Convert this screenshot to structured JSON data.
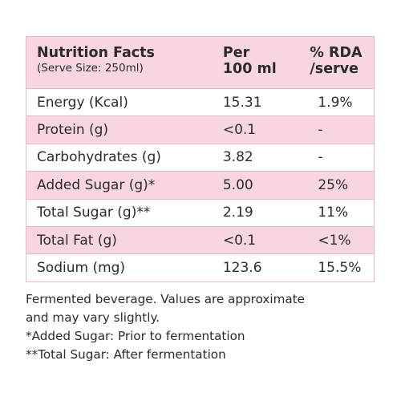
{
  "header": {
    "title": "Nutrition Facts",
    "serve_size": "(Serve Size: 250ml)",
    "col_per_line1": "Per",
    "col_per_line2": "100 ml",
    "col_rda_line1": "% RDA",
    "col_rda_line2": "/serve"
  },
  "rows": [
    {
      "label": "Energy (Kcal)",
      "per_100ml": "15.31",
      "rda": "1.9%"
    },
    {
      "label": "Protein (g)",
      "per_100ml": "<0.1",
      "rda": "-"
    },
    {
      "label": "Carbohydrates (g)",
      "per_100ml": "3.82",
      "rda": "-"
    },
    {
      "label": "Added Sugar (g)*",
      "per_100ml": "5.00",
      "rda": "25%"
    },
    {
      "label": "Total Sugar (g)**",
      "per_100ml": "2.19",
      "rda": "11%"
    },
    {
      "label": "Total Fat (g)",
      "per_100ml": "<0.1",
      "rda": "<1%"
    },
    {
      "label": "Sodium (mg)",
      "per_100ml": "123.6",
      "rda": "15.5%"
    }
  ],
  "notes": [
    "Fermented beverage. Values are approximate",
    "and may vary slightly.",
    "*Added Sugar: Prior to fermentation",
    "**Total Sugar: After fermentation"
  ],
  "colors": {
    "shade": "#f8d6e0",
    "border": "#e9b9c6",
    "text": "#2b2b2b"
  }
}
